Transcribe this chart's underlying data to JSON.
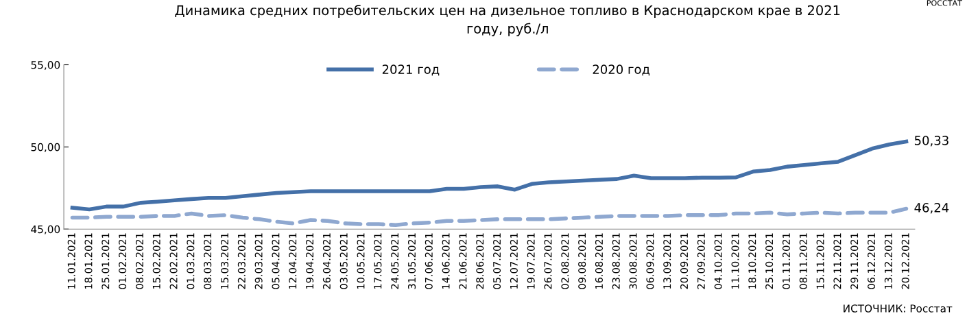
{
  "chart_data": {
    "type": "line",
    "title": "Динамика средних потребительских цен на дизельное топливо в Краснодарском крае в 2021\nгоду, руб./л",
    "categories": [
      "11.01.2021",
      "18.01.2021",
      "25.01.2021",
      "01.02.2021",
      "08.02.2021",
      "15.02.2021",
      "22.02.2021",
      "01.03.2021",
      "08.03.2021",
      "15.03.2021",
      "22.03.2021",
      "29.03.2021",
      "05.04.2021",
      "12.04.2021",
      "19.04.2021",
      "26.04.2021",
      "03.05.2021",
      "10.05.2021",
      "17.05.2021",
      "24.05.2021",
      "31.05.2021",
      "07.06.2021",
      "14.06.2021",
      "21.06.2021",
      "28.06.2021",
      "05.07.2021",
      "12.07.2021",
      "19.07.2021",
      "26.07.2021",
      "02.08.2021",
      "09.08.2021",
      "16.08.2021",
      "23.08.2021",
      "30.08.2021",
      "06.09.2021",
      "13.09.2021",
      "20.09.2021",
      "27.09.2021",
      "04.10.2021",
      "11.10.2021",
      "18.10.2021",
      "25.10.2021",
      "01.11.2021",
      "08.11.2021",
      "15.11.2021",
      "22.11.2021",
      "29.11.2021",
      "06.12.2021",
      "13.12.2021",
      "20.12.2021"
    ],
    "series": [
      {
        "name": "2021 год",
        "color": "#4470a8",
        "line_style": "solid",
        "values": [
          46.3,
          46.2,
          46.37,
          46.37,
          46.6,
          46.67,
          46.75,
          46.83,
          46.9,
          46.9,
          47.0,
          47.1,
          47.2,
          47.25,
          47.3,
          47.3,
          47.3,
          47.3,
          47.3,
          47.3,
          47.3,
          47.3,
          47.45,
          47.45,
          47.55,
          47.6,
          47.4,
          47.75,
          47.85,
          47.9,
          47.95,
          48.0,
          48.05,
          48.25,
          48.1,
          48.1,
          48.1,
          48.13,
          48.13,
          48.15,
          48.5,
          48.6,
          48.8,
          48.9,
          49.0,
          49.1,
          49.5,
          49.9,
          50.15,
          50.33
        ],
        "value_labels": [
          null,
          null,
          null,
          null,
          null,
          null,
          null,
          null,
          null,
          null,
          null,
          null,
          null,
          null,
          null,
          null,
          null,
          null,
          null,
          null,
          null,
          null,
          null,
          null,
          null,
          null,
          null,
          null,
          null,
          null,
          null,
          null,
          null,
          null,
          null,
          null,
          null,
          null,
          null,
          null,
          null,
          null,
          null,
          null,
          null,
          null,
          null,
          null,
          null,
          "50,33"
        ]
      },
      {
        "name": "2020 год",
        "color": "#8fa8d0",
        "line_style": "dashed",
        "values": [
          45.7,
          45.7,
          45.75,
          45.75,
          45.75,
          45.8,
          45.8,
          45.95,
          45.8,
          45.85,
          45.7,
          45.6,
          45.45,
          45.35,
          45.55,
          45.5,
          45.35,
          45.3,
          45.3,
          45.25,
          45.35,
          45.4,
          45.5,
          45.5,
          45.55,
          45.6,
          45.6,
          45.6,
          45.6,
          45.65,
          45.7,
          45.75,
          45.8,
          45.8,
          45.8,
          45.8,
          45.85,
          45.85,
          45.85,
          45.95,
          45.95,
          46.0,
          45.9,
          45.95,
          46.0,
          45.95,
          46.0,
          46.0,
          46.0,
          46.24
        ],
        "value_labels": [
          null,
          null,
          null,
          null,
          null,
          null,
          null,
          null,
          null,
          null,
          null,
          null,
          null,
          null,
          null,
          null,
          null,
          null,
          null,
          null,
          null,
          null,
          null,
          null,
          null,
          null,
          null,
          null,
          null,
          null,
          null,
          null,
          null,
          null,
          null,
          null,
          null,
          null,
          null,
          null,
          null,
          null,
          null,
          null,
          null,
          null,
          null,
          null,
          null,
          "46,24"
        ]
      }
    ],
    "ylim": [
      45,
      55
    ],
    "yticks": [
      {
        "value": 45,
        "label": "45,00"
      },
      {
        "value": 50,
        "label": "50,00"
      },
      {
        "value": 55,
        "label": "55,00"
      }
    ],
    "grid": false,
    "legend": "top",
    "marker": "none",
    "annotations": [
      "ИСТОЧНИК: Росстат",
      "РОССТАТ"
    ]
  }
}
